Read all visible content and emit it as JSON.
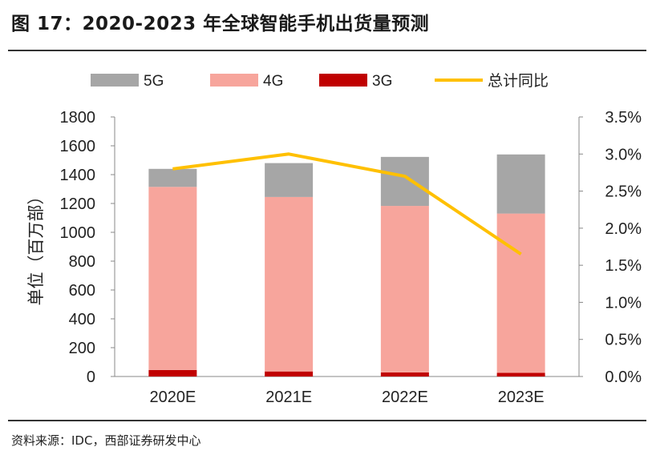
{
  "title": "图 17：2020-2023 年全球智能手机出货量预测",
  "source": "资料来源：IDC，西部证券研发中心",
  "colors": {
    "g5": "#a6a6a6",
    "g4": "#f7a59c",
    "g3": "#c00000",
    "yoy": "#ffc000",
    "axis": "#888888"
  },
  "chart_data": {
    "type": "bar",
    "stacked": true,
    "categories": [
      "2020E",
      "2021E",
      "2022E",
      "2023E"
    ],
    "series": [
      {
        "name": "5G",
        "values": [
          125,
          235,
          340,
          410
        ]
      },
      {
        "name": "4G",
        "values": [
          1270,
          1210,
          1155,
          1105
        ]
      },
      {
        "name": "3G",
        "values": [
          45,
          35,
          28,
          25
        ]
      }
    ],
    "line_series": {
      "name": "总计同比",
      "axis": "right",
      "values": [
        0.028,
        0.03,
        0.027,
        0.0165
      ]
    },
    "ylabel": "单位（百万部）",
    "ylim": [
      0,
      1800
    ],
    "yticks": [
      0,
      200,
      400,
      600,
      800,
      1000,
      1200,
      1400,
      1600,
      1800
    ],
    "y2lim": [
      0,
      0.035
    ],
    "y2ticks": [
      "0.0%",
      "0.5%",
      "1.0%",
      "1.5%",
      "2.0%",
      "2.5%",
      "3.0%",
      "3.5%"
    ],
    "legend": [
      "5G",
      "4G",
      "3G",
      "总计同比"
    ],
    "legend_position": "top"
  }
}
